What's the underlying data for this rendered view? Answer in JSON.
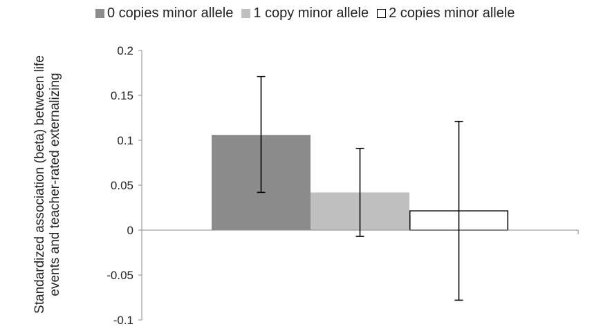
{
  "chart_data": {
    "type": "bar",
    "categories": [
      ""
    ],
    "series": [
      {
        "name": "0 copies minor allele",
        "values": [
          0.106
        ],
        "error_low": [
          0.042
        ],
        "error_high": [
          0.171
        ],
        "color": "#8c8c8c",
        "border": "#8c8c8c"
      },
      {
        "name": "1 copy minor allele",
        "values": [
          0.042
        ],
        "error_low": [
          -0.007
        ],
        "error_high": [
          0.091
        ],
        "color": "#c0c0c0",
        "border": "#c0c0c0"
      },
      {
        "name": "2 copies minor allele",
        "values": [
          0.022
        ],
        "error_low": [
          -0.078
        ],
        "error_high": [
          0.121
        ],
        "color": "#ffffff",
        "border": "#000000"
      }
    ],
    "ylabel": "Standardized association (beta) between life events and teacher-rated externalizing",
    "ylim": [
      -0.1,
      0.2
    ],
    "yticks": [
      -0.1,
      -0.05,
      0,
      0.05,
      0.1,
      0.15,
      0.2
    ],
    "ytick_labels": [
      "-0.1",
      "-0.05",
      "0",
      "0.05",
      "0.1",
      "0.15",
      "0.2"
    ],
    "grid": false,
    "legend_position": "top"
  }
}
